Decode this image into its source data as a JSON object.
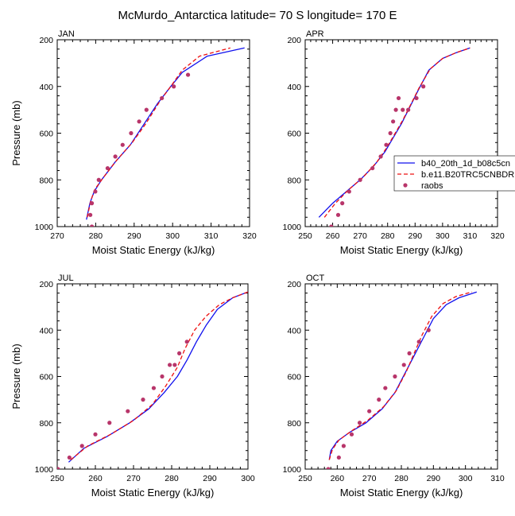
{
  "title": "McMurdo_Antarctica  latitude= 70 S longitude= 170 E",
  "colors": {
    "model1": "#1010ee",
    "model2": "#ee1010",
    "obs": "#b8356a",
    "axis": "#000000"
  },
  "legend": {
    "entries": [
      {
        "label": "b40_20th_1d_b08c5cn",
        "style": "solid-line",
        "color": "#1010ee"
      },
      {
        "label": "b.e11.B20TRC5CNBDRD",
        "style": "dashed-line",
        "color": "#ee1010"
      },
      {
        "label": "raobs",
        "style": "dot",
        "color": "#b8356a"
      }
    ]
  },
  "chart_data": [
    {
      "type": "line",
      "panel": "JAN",
      "xlabel": "Moist Static Energy (kJ/kg)",
      "ylabel": "Pressure (mb)",
      "xlim": [
        270,
        320
      ],
      "ylim": [
        200,
        1000
      ],
      "y_inverted": true,
      "xticks": [
        270,
        280,
        290,
        300,
        310,
        320
      ],
      "yticks": [
        200,
        400,
        600,
        800,
        1000
      ],
      "series": [
        {
          "name": "b40_20th_1d_b08c5cn",
          "style": "solid",
          "x": [
            277.6,
            278.5,
            279.6,
            281.5,
            285.0,
            289.0,
            292.0,
            296.0,
            299.5,
            302.5,
            309.0,
            318.7
          ],
          "y": [
            970,
            900,
            850,
            800,
            725,
            650,
            575,
            475,
            400,
            340,
            270,
            235
          ]
        },
        {
          "name": "b.e11.B20TRC5CNBDRD",
          "style": "dashed",
          "x": [
            277.8,
            278.7,
            279.8,
            282.0,
            285.5,
            289.5,
            293.0,
            296.8,
            299.5,
            302.5,
            307.0,
            315.0
          ],
          "y": [
            960,
            890,
            840,
            790,
            715,
            640,
            560,
            460,
            400,
            330,
            270,
            235
          ]
        },
        {
          "name": "raobs",
          "style": "points",
          "x": [
            279.0,
            278.6,
            279.0,
            279.9,
            280.8,
            283.1,
            285.1,
            287.0,
            289.2,
            291.3,
            293.2,
            297.2,
            300.3,
            304.0
          ],
          "y": [
            1000,
            950,
            900,
            850,
            800,
            750,
            700,
            650,
            600,
            550,
            500,
            450,
            400,
            350
          ]
        }
      ]
    },
    {
      "type": "line",
      "panel": "APR",
      "xlabel": "Moist Static Energy (kJ/kg)",
      "ylabel": "",
      "xlim": [
        250,
        320
      ],
      "ylim": [
        200,
        1000
      ],
      "y_inverted": true,
      "xticks": [
        250,
        260,
        270,
        280,
        290,
        300,
        310,
        320
      ],
      "yticks": [
        200,
        400,
        600,
        800,
        1000
      ],
      "series": [
        {
          "name": "b40_20th_1d_b08c5cn",
          "style": "solid",
          "x": [
            255.0,
            260.0,
            265.0,
            270.0,
            275.0,
            279.0,
            282.0,
            285.0,
            288.0,
            291.0,
            295.0,
            300.0,
            305.0,
            310.0
          ],
          "y": [
            960,
            900,
            850,
            800,
            740,
            680,
            620,
            560,
            490,
            420,
            330,
            280,
            255,
            235
          ]
        },
        {
          "name": "b.e11.B20TRC5CNBDRD",
          "style": "dashed",
          "x": [
            257.0,
            261.0,
            266.0,
            271.0,
            276.0,
            279.5,
            282.5,
            285.5,
            288.5,
            291.5,
            295.5,
            300.0,
            305.0,
            310.0
          ],
          "y": [
            960,
            900,
            840,
            790,
            725,
            665,
            605,
            545,
            475,
            405,
            325,
            280,
            255,
            235
          ]
        },
        {
          "name": "raobs",
          "style": "points",
          "x": [
            259.5,
            262.0,
            263.5,
            266.0,
            270.0,
            274.5,
            277.5,
            279.5,
            281.0,
            282.0,
            283.0,
            284.0,
            285.5,
            287.5,
            290.5,
            293.0
          ],
          "y": [
            1000,
            950,
            900,
            850,
            800,
            750,
            700,
            650,
            600,
            550,
            500,
            450,
            500,
            500,
            450,
            400
          ]
        }
      ]
    },
    {
      "type": "line",
      "panel": "JUL",
      "xlabel": "Moist Static Energy (kJ/kg)",
      "ylabel": "Pressure (mb)",
      "xlim": [
        250,
        300
      ],
      "ylim": [
        200,
        1000
      ],
      "y_inverted": true,
      "xticks": [
        250,
        260,
        270,
        280,
        290,
        300
      ],
      "yticks": [
        200,
        400,
        600,
        800,
        1000
      ],
      "series": [
        {
          "name": "b40_20th_1d_b08c5cn",
          "style": "solid",
          "x": [
            253.0,
            257.0,
            263.0,
            269.0,
            274.0,
            278.0,
            281.5,
            284.0,
            286.5,
            289.0,
            292.0,
            296.0,
            300.0
          ],
          "y": [
            970,
            910,
            860,
            800,
            740,
            670,
            600,
            530,
            450,
            380,
            310,
            260,
            235
          ]
        },
        {
          "name": "b.e11.B20TRC5CNBDRD",
          "style": "dashed",
          "x": [
            253.5,
            258.0,
            264.0,
            270.0,
            275.0,
            278.5,
            281.5,
            283.5,
            286.0,
            289.0,
            292.5,
            296.0,
            300.0
          ],
          "y": [
            960,
            900,
            850,
            790,
            720,
            640,
            560,
            480,
            400,
            340,
            290,
            260,
            235
          ]
        },
        {
          "name": "raobs",
          "style": "points",
          "x": [
            250.2,
            253.2,
            256.5,
            260.0,
            263.7,
            268.5,
            272.5,
            275.3,
            277.5,
            279.5,
            280.8,
            282.0,
            284.0
          ],
          "y": [
            1000,
            950,
            900,
            850,
            800,
            750,
            700,
            650,
            600,
            550,
            550,
            500,
            450
          ]
        }
      ]
    },
    {
      "type": "line",
      "panel": "OCT",
      "xlabel": "Moist Static Energy (kJ/kg)",
      "ylabel": "",
      "xlim": [
        250,
        310
      ],
      "ylim": [
        200,
        1000
      ],
      "y_inverted": true,
      "xticks": [
        250,
        260,
        270,
        280,
        290,
        300,
        310
      ],
      "yticks": [
        200,
        400,
        600,
        800,
        1000
      ],
      "series": [
        {
          "name": "b40_20th_1d_b08c5cn",
          "style": "solid",
          "x": [
            257.5,
            258.0,
            260.0,
            264.0,
            269.0,
            274.0,
            278.0,
            281.0,
            284.0,
            287.0,
            290.0,
            294.0,
            298.0,
            303.5
          ],
          "y": [
            960,
            920,
            880,
            840,
            800,
            740,
            670,
            590,
            510,
            430,
            350,
            290,
            260,
            235
          ]
        },
        {
          "name": "b.e11.B20TRC5CNBDRD",
          "style": "dashed",
          "x": [
            257.5,
            258.5,
            260.5,
            264.5,
            269.5,
            274.5,
            278.5,
            281.5,
            284.0,
            286.5,
            289.5,
            293.0,
            297.0,
            302.0
          ],
          "y": [
            960,
            915,
            875,
            835,
            790,
            730,
            660,
            580,
            500,
            420,
            340,
            285,
            255,
            235
          ]
        },
        {
          "name": "raobs",
          "style": "points",
          "x": [
            257.2,
            260.5,
            262.0,
            264.5,
            267.0,
            270.0,
            273.0,
            275.0,
            278.0,
            280.8,
            282.5,
            285.5,
            288.5
          ],
          "y": [
            1000,
            950,
            900,
            850,
            800,
            750,
            700,
            650,
            600,
            550,
            500,
            450,
            400
          ]
        }
      ]
    }
  ]
}
